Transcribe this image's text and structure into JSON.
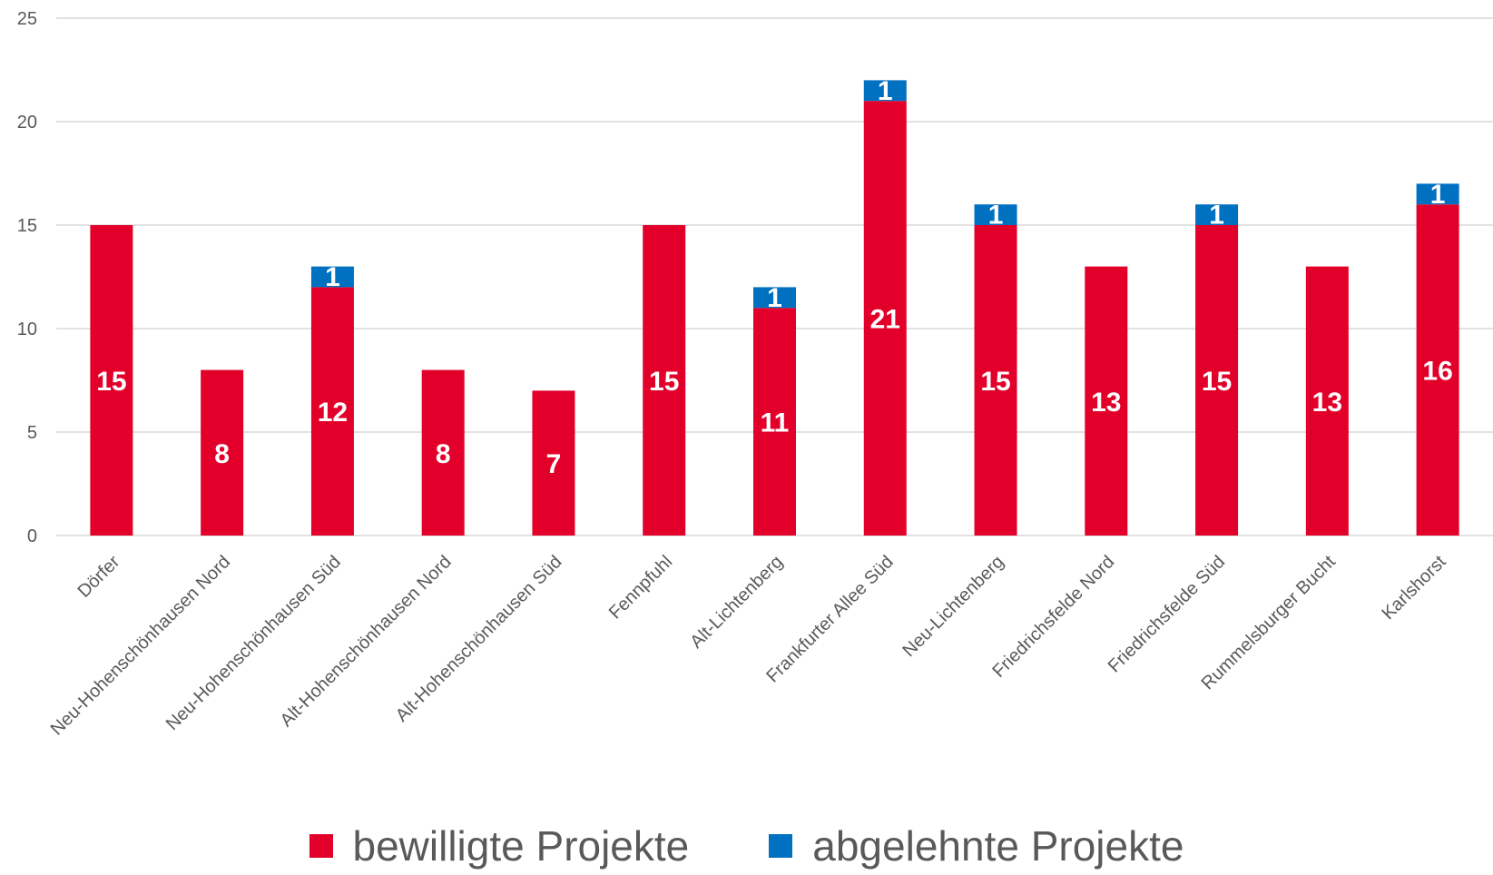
{
  "chart_data": {
    "type": "bar",
    "stacked": true,
    "categories": [
      "Dörfer",
      "Neu-Hohenschönhausen Nord",
      "Neu-Hohenschönhausen Süd",
      "Alt-Hohenschönhausen Nord",
      "Alt-Hohenschönhausen Süd",
      "Fennpfuhl",
      "Alt-Lichtenberg",
      "Frankfurter Allee Süd",
      "Neu-Lichtenberg",
      "Friedrichsfelde Nord",
      "Friedrichsfelde Süd",
      "Rummelsburger Bucht",
      "Karlshorst"
    ],
    "series": [
      {
        "name": "bewilligte Projekte",
        "color": "#E2002A",
        "values": [
          15,
          8,
          12,
          8,
          7,
          15,
          11,
          21,
          15,
          13,
          15,
          13,
          16
        ]
      },
      {
        "name": "abgelehnte Projekte",
        "color": "#0070C0",
        "values": [
          0,
          0,
          1,
          0,
          0,
          0,
          1,
          1,
          1,
          0,
          1,
          0,
          1
        ]
      }
    ],
    "ylim": [
      0,
      25
    ],
    "yticks": [
      0,
      5,
      10,
      15,
      20,
      25
    ],
    "grid": true,
    "legend": "bottom",
    "title": "",
    "xlabel": "",
    "ylabel": ""
  }
}
